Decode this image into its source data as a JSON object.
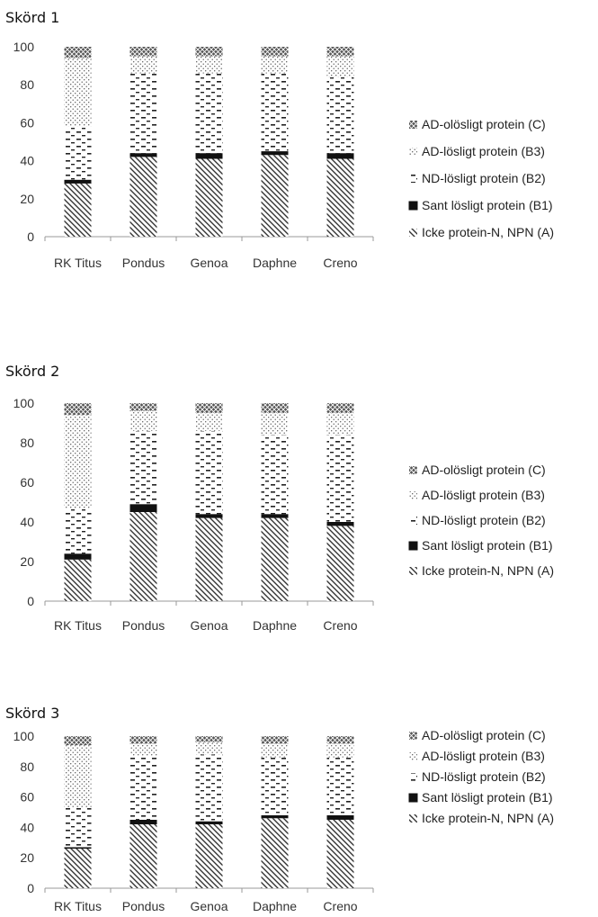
{
  "chart_data": [
    {
      "type": "bar",
      "stacked": true,
      "title": "Skörd 1",
      "categories": [
        "RK Titus",
        "Pondus",
        "Genoa",
        "Daphne",
        "Creno"
      ],
      "ylim": [
        0,
        100
      ],
      "yticks": [
        "0",
        "20",
        "40",
        "60",
        "80",
        "100"
      ],
      "legend_position": "right",
      "series": [
        {
          "name": "Icke protein-N, NPN (A)",
          "pattern": "diag",
          "values": [
            28,
            42,
            41,
            43,
            41
          ]
        },
        {
          "name": "Sant lösligt protein (B1)",
          "pattern": "solid",
          "values": [
            2,
            2,
            3,
            2,
            3
          ]
        },
        {
          "name": "ND-lösligt protein (B2)",
          "pattern": "dash",
          "values": [
            28,
            42,
            42,
            41,
            40
          ]
        },
        {
          "name": "AD-lösligt protein (B3)",
          "pattern": "dots",
          "values": [
            36,
            9,
            9,
            9,
            11
          ]
        },
        {
          "name": "AD-olösligt protein (C)",
          "pattern": "cross",
          "values": [
            6,
            5,
            5,
            5,
            5
          ]
        }
      ]
    },
    {
      "type": "bar",
      "stacked": true,
      "title": "Skörd 2",
      "categories": [
        "RK Titus",
        "Pondus",
        "Genoa",
        "Daphne",
        "Creno"
      ],
      "ylim": [
        0,
        100
      ],
      "yticks": [
        "0",
        "20",
        "40",
        "60",
        "80",
        "100"
      ],
      "legend_position": "right",
      "series": [
        {
          "name": "Icke protein-N, NPN (A)",
          "pattern": "diag",
          "values": [
            21,
            45,
            42,
            42,
            38
          ]
        },
        {
          "name": "Sant lösligt protein (B1)",
          "pattern": "solid",
          "values": [
            3,
            4,
            2,
            2,
            2
          ]
        },
        {
          "name": "ND-lösligt protein (B2)",
          "pattern": "dash",
          "values": [
            23,
            37,
            42,
            40,
            44
          ]
        },
        {
          "name": "AD-lösligt protein (B3)",
          "pattern": "dots",
          "values": [
            47,
            10,
            9,
            11,
            11
          ]
        },
        {
          "name": "AD-olösligt protein (C)",
          "pattern": "cross",
          "values": [
            6,
            4,
            5,
            5,
            5
          ]
        }
      ]
    },
    {
      "type": "bar",
      "stacked": true,
      "title": "Skörd 3",
      "categories": [
        "RK Titus",
        "Pondus",
        "Genoa",
        "Daphne",
        "Creno"
      ],
      "ylim": [
        0,
        100
      ],
      "yticks": [
        "0",
        "20",
        "40",
        "60",
        "80",
        "100"
      ],
      "legend_position": "right",
      "series": [
        {
          "name": "Icke protein-N, NPN (A)",
          "pattern": "diag",
          "values": [
            26,
            42,
            42,
            46,
            45
          ]
        },
        {
          "name": "Sant lösligt protein (B1)",
          "pattern": "solid",
          "values": [
            1,
            3,
            2,
            2,
            3
          ]
        },
        {
          "name": "ND-lösligt protein (B2)",
          "pattern": "dash",
          "values": [
            26,
            42,
            44,
            38,
            38
          ]
        },
        {
          "name": "AD-lösligt protein (B3)",
          "pattern": "dots",
          "values": [
            41,
            8,
            8,
            9,
            9
          ]
        },
        {
          "name": "AD-olösligt protein (C)",
          "pattern": "cross",
          "values": [
            6,
            5,
            4,
            5,
            5
          ]
        }
      ]
    }
  ]
}
